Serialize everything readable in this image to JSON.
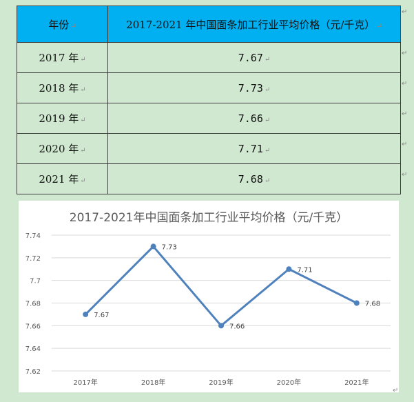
{
  "table": {
    "header": {
      "year_col": "年份",
      "price_col": "2017-2021 年中国面条加工行业平均价格（元/千克）"
    },
    "rows": [
      {
        "year": "2017 年",
        "price": "7.67"
      },
      {
        "year": "2018 年",
        "price": "7.73"
      },
      {
        "year": "2019 年",
        "price": "7.66"
      },
      {
        "year": "2020 年",
        "price": "7.71"
      },
      {
        "year": "2021 年",
        "price": "7.68"
      }
    ]
  },
  "paragraph_mark": "↵",
  "colors": {
    "header_bg": "#00b0f0",
    "page_bg": "#cfe8cf",
    "line": "#4f81bd",
    "grid": "#d9d9d9",
    "axis_text": "#595959"
  },
  "chart_data": {
    "type": "line",
    "title": "2017-2021年中国面条加工行业平均价格（元/千克）",
    "categories": [
      "2017年",
      "2018年",
      "2019年",
      "2020年",
      "2021年"
    ],
    "series": [
      {
        "values": [
          7.67,
          7.73,
          7.66,
          7.71,
          7.68
        ]
      }
    ],
    "data_labels": [
      "7.67",
      "7.73",
      "7.66",
      "7.71",
      "7.68"
    ],
    "ylim": [
      7.62,
      7.74
    ],
    "yticks": [
      "7.62",
      "7.64",
      "7.66",
      "7.68",
      "7.7",
      "7.72",
      "7.74"
    ],
    "ytick_values": [
      7.62,
      7.64,
      7.66,
      7.68,
      7.7,
      7.72,
      7.74
    ],
    "grid": true,
    "legend": "none"
  }
}
